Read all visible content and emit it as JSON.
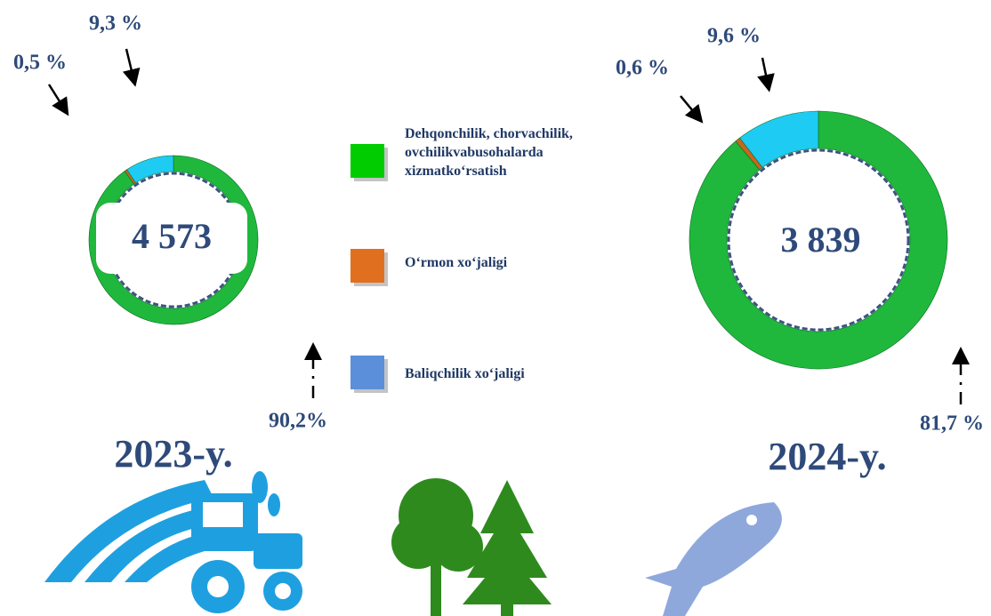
{
  "legend": {
    "items": [
      "Dehqonchilik, chorvachilik, ovchilikvabusohalarda xizmatko‘rsatish",
      "O‘rmon xo‘jaligi",
      "Baliqchilik xo‘jaligi"
    ],
    "colors": [
      "#00cc00",
      "#e0701f",
      "#5b8fd9"
    ]
  },
  "chart_data": [
    {
      "type": "donut",
      "title": "2023-y.",
      "total": {
        "value": 4573,
        "label": "4 573"
      },
      "values": [
        90.2,
        0.5,
        9.3
      ],
      "value_labels": [
        "90,2%",
        "0,5 %",
        "9,3 %"
      ],
      "colors": [
        "#1fb83c",
        "#c8661e",
        "#1ecbf2"
      ]
    },
    {
      "type": "donut",
      "title": "2024-y.",
      "total": {
        "value": 3839,
        "label": "3 839"
      },
      "values": [
        81.7,
        0.6,
        9.6
      ],
      "value_labels": [
        "81,7 %",
        "0,6 %",
        "9,6 %"
      ],
      "colors": [
        "#1fb83c",
        "#c8661e",
        "#1ecbf2"
      ]
    }
  ]
}
